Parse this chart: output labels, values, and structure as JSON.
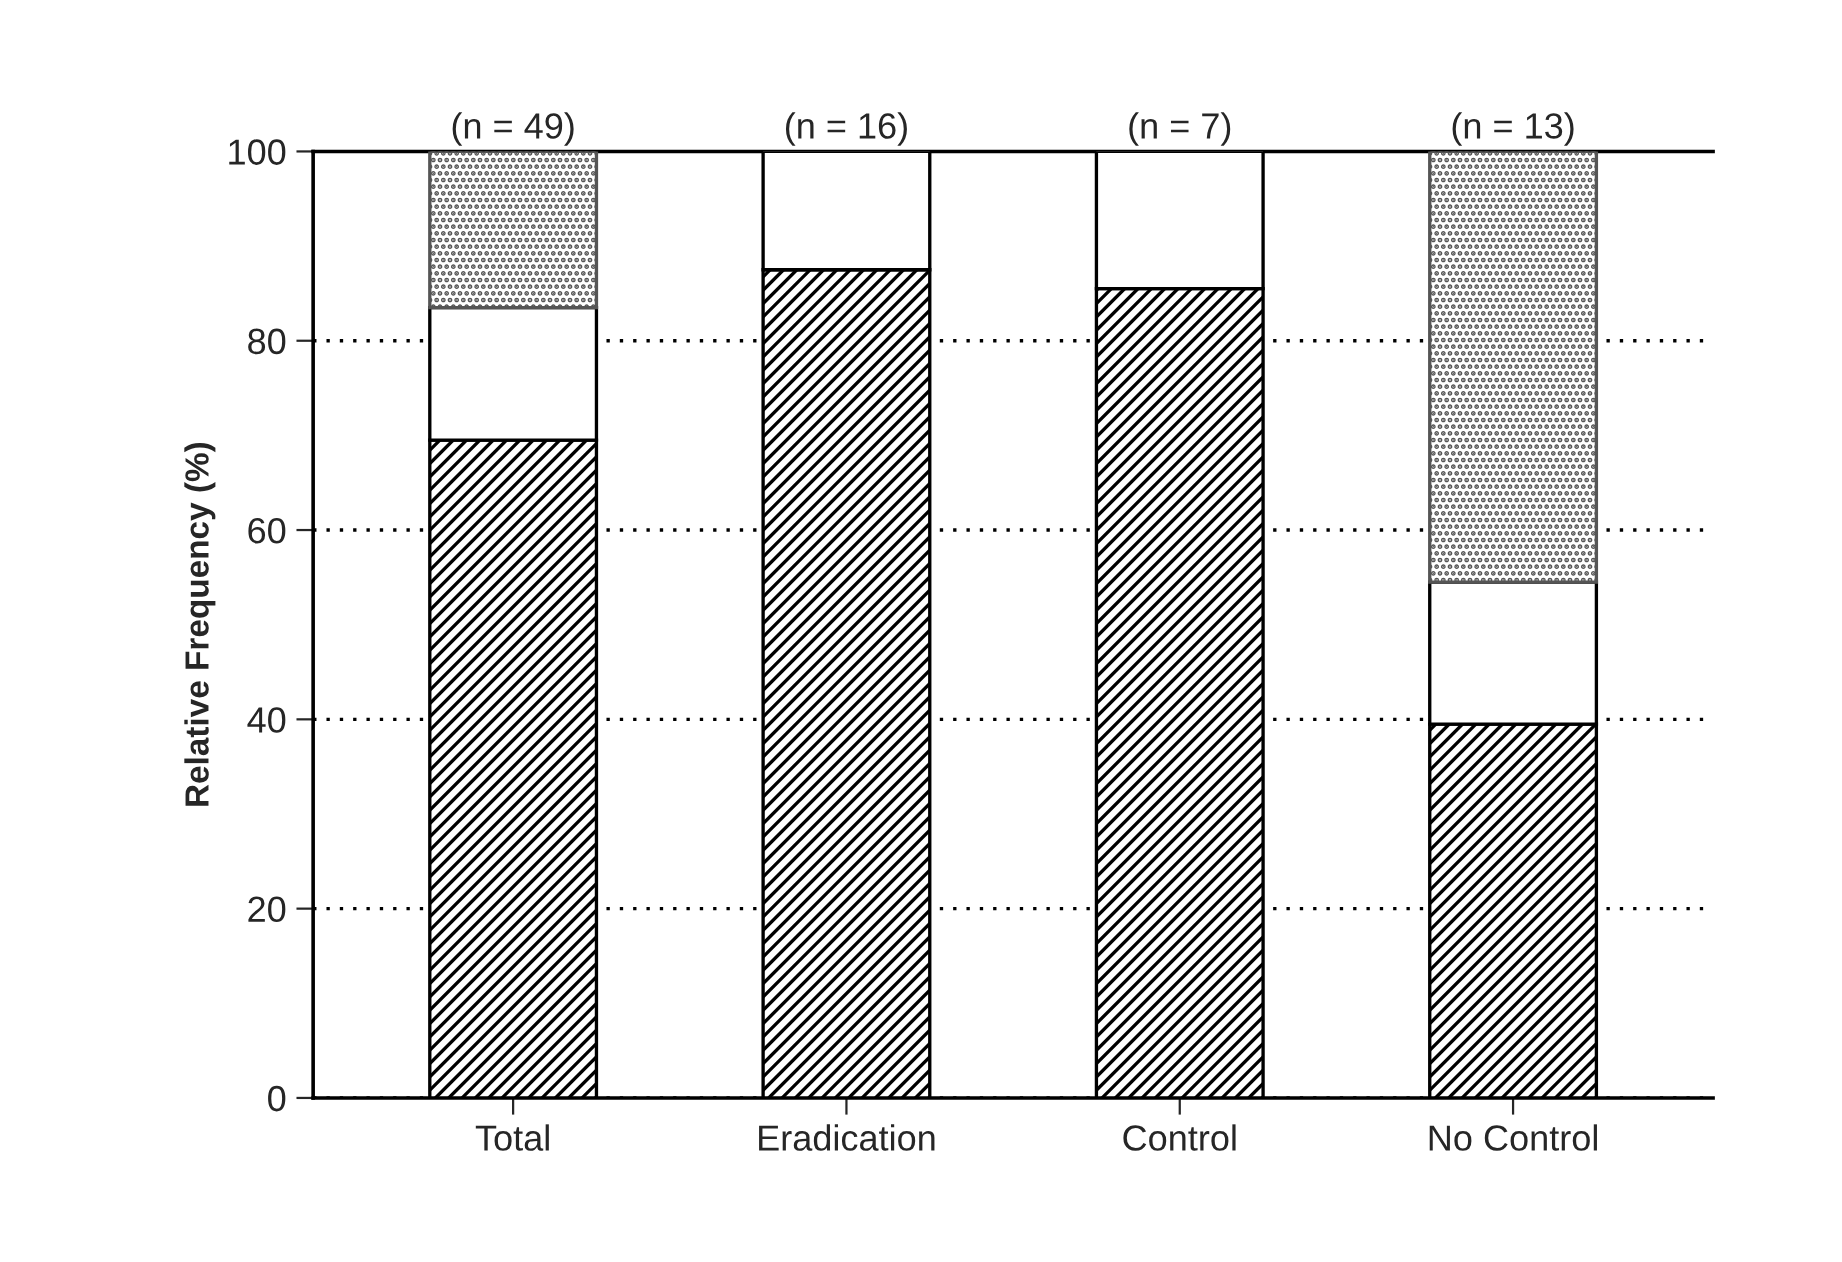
{
  "chart_data": {
    "type": "bar",
    "stacked": true,
    "ylabel": "Relative Frequency (%)",
    "categories": [
      "Total",
      "Eradication",
      "Control",
      "No Control"
    ],
    "series": [
      {
        "color": "#000000",
        "values": [
          69.5,
          87.5,
          85.5,
          39.5
        ]
      },
      {
        "color": "#ffffff",
        "values": [
          14,
          12.5,
          14.5,
          15
        ]
      },
      {
        "color": "#555555",
        "values": [
          16.5,
          0,
          0,
          45.5
        ]
      }
    ],
    "ylim": [
      0,
      100
    ],
    "yticks": [
      0,
      20,
      40,
      60,
      80,
      100
    ],
    "grid": "y",
    "annotations": [
      {
        "text": "(n = 49)",
        "x": "Total",
        "y": 100
      },
      {
        "text": "(n = 16)",
        "x": "Eradication",
        "y": 100
      },
      {
        "text": "(n = 7)",
        "x": "Control",
        "y": 100
      },
      {
        "text": "(n = 13)",
        "x": "No Control",
        "y": 100
      }
    ]
  }
}
